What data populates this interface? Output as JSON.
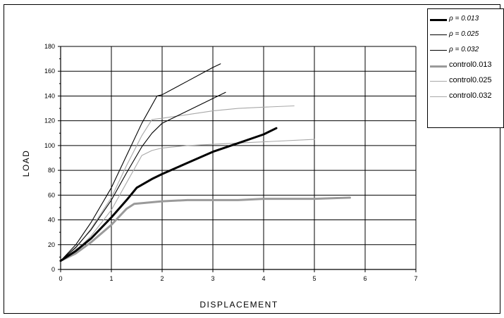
{
  "chart_data": {
    "type": "line",
    "title": "",
    "xlabel": "DISPLACEMENT",
    "ylabel": "LOAD",
    "xlim": [
      0,
      7
    ],
    "ylim": [
      0,
      180
    ],
    "x_ticks": [
      "0",
      "1",
      "2",
      "3",
      "4",
      "5",
      "6",
      "7"
    ],
    "y_ticks": [
      "0",
      "20",
      "40",
      "60",
      "80",
      "100",
      "120",
      "140",
      "160",
      "180"
    ],
    "grid": true,
    "legend_position": "top-right",
    "series": [
      {
        "name": "ρ = 0.013",
        "color": "#000000",
        "style": "thick",
        "points": [
          [
            0,
            7
          ],
          [
            0.3,
            15
          ],
          [
            0.6,
            25
          ],
          [
            1.0,
            42
          ],
          [
            1.3,
            56
          ],
          [
            1.5,
            66
          ],
          [
            1.8,
            73
          ],
          [
            2.0,
            77
          ],
          [
            2.5,
            86
          ],
          [
            3.0,
            95
          ],
          [
            3.5,
            102
          ],
          [
            4.0,
            109
          ],
          [
            4.25,
            114
          ]
        ]
      },
      {
        "name": "ρ = 0.025",
        "color": "#000000",
        "style": "thin",
        "points": [
          [
            0,
            7
          ],
          [
            0.3,
            18
          ],
          [
            0.6,
            32
          ],
          [
            1.0,
            56
          ],
          [
            1.3,
            78
          ],
          [
            1.6,
            99
          ],
          [
            1.8,
            110
          ],
          [
            2.0,
            118
          ],
          [
            2.5,
            128
          ],
          [
            3.0,
            138
          ],
          [
            3.25,
            143
          ]
        ]
      },
      {
        "name": "ρ = 0.032",
        "color": "#000000",
        "style": "thin",
        "points": [
          [
            0,
            7
          ],
          [
            0.3,
            20
          ],
          [
            0.6,
            38
          ],
          [
            1.0,
            66
          ],
          [
            1.3,
            92
          ],
          [
            1.6,
            118
          ],
          [
            1.9,
            140
          ],
          [
            2.0,
            141
          ],
          [
            2.5,
            152
          ],
          [
            3.0,
            163
          ],
          [
            3.15,
            166
          ]
        ]
      },
      {
        "name": "control0.013",
        "color": "#9a9a9a",
        "style": "thick",
        "points": [
          [
            0,
            7
          ],
          [
            0.3,
            13
          ],
          [
            0.6,
            22
          ],
          [
            1.0,
            36
          ],
          [
            1.3,
            49
          ],
          [
            1.45,
            53
          ],
          [
            2.0,
            55
          ],
          [
            2.5,
            56
          ],
          [
            3.0,
            56
          ],
          [
            3.5,
            56
          ],
          [
            4.0,
            57
          ],
          [
            5.0,
            57
          ],
          [
            5.7,
            58
          ]
        ]
      },
      {
        "name": "control0.025",
        "color": "#a8a8a8",
        "style": "thin",
        "points": [
          [
            0,
            7
          ],
          [
            0.3,
            15
          ],
          [
            0.6,
            27
          ],
          [
            1.0,
            48
          ],
          [
            1.3,
            70
          ],
          [
            1.6,
            92
          ],
          [
            1.8,
            96
          ],
          [
            2.0,
            98
          ],
          [
            2.5,
            100
          ],
          [
            3.0,
            101
          ],
          [
            4.0,
            103
          ],
          [
            5.0,
            105
          ]
        ]
      },
      {
        "name": "control0.032",
        "color": "#a8a8a8",
        "style": "thin",
        "points": [
          [
            0,
            7
          ],
          [
            0.3,
            17
          ],
          [
            0.6,
            33
          ],
          [
            1.0,
            58
          ],
          [
            1.3,
            84
          ],
          [
            1.6,
            108
          ],
          [
            1.8,
            121
          ],
          [
            2.0,
            122
          ],
          [
            2.5,
            125
          ],
          [
            3.0,
            128
          ],
          [
            3.5,
            130
          ],
          [
            4.0,
            131
          ],
          [
            4.6,
            132
          ]
        ]
      }
    ]
  }
}
